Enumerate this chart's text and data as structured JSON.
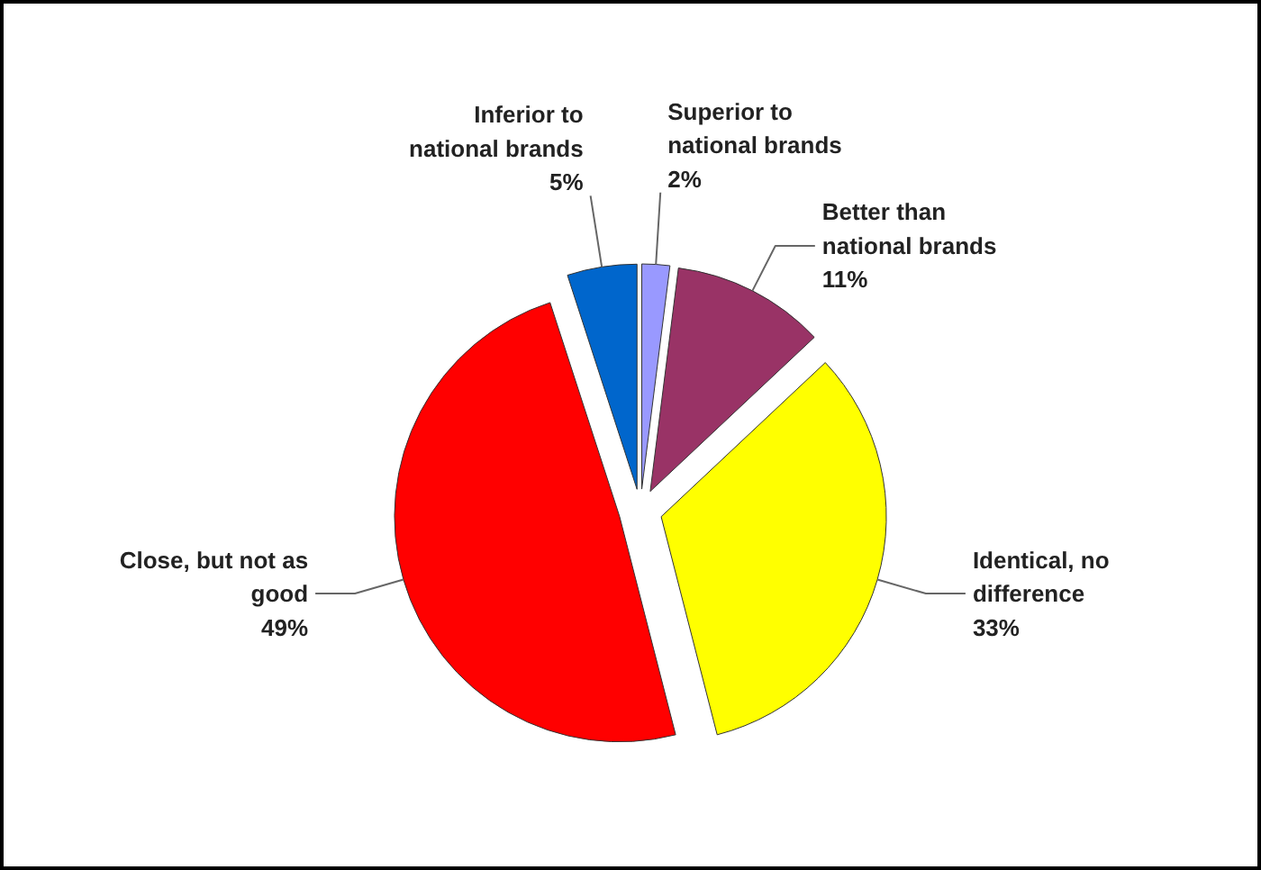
{
  "chart_data": {
    "type": "pie",
    "categories": [
      "Superior to national brands",
      "Better than national brands",
      "Identical, no difference",
      "Close, but not as good",
      "Inferior to national brands"
    ],
    "values": [
      2,
      11,
      33,
      49,
      5
    ],
    "colors": [
      "#9999ff",
      "#993366",
      "#ffff00",
      "#ff0000",
      "#0066cc"
    ],
    "value_labels": [
      "2%",
      "11%",
      "33%",
      "49%",
      "5%"
    ]
  }
}
